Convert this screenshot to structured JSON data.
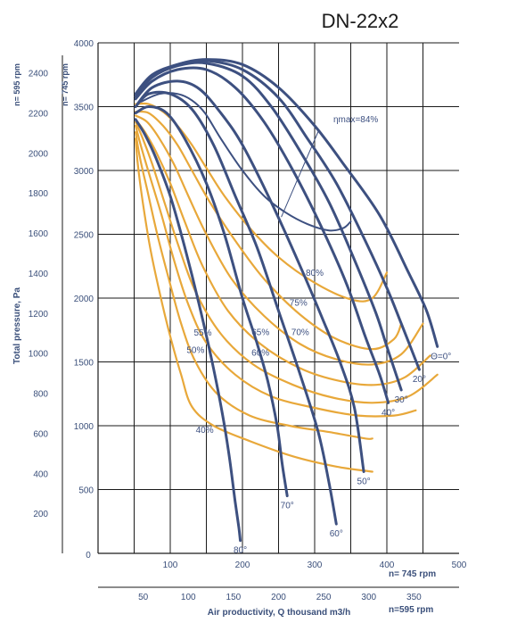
{
  "chart_data": {
    "type": "line",
    "title": "DN-22x2",
    "ylabel": "Total pressure, Pa",
    "xlabel": "Air productivity, Q thousand m3/h",
    "speeds": {
      "primary": "n= 745 rpm",
      "secondary": "n=595 rpm"
    },
    "x_axis_primary": {
      "label": "n= 745 rpm",
      "range": [
        0,
        500
      ],
      "ticks": [
        100,
        200,
        300,
        400,
        500
      ]
    },
    "x_axis_secondary": {
      "label": "n=595 rpm",
      "range": [
        0,
        400
      ],
      "ticks": [
        50,
        100,
        150,
        200,
        250,
        300,
        350
      ]
    },
    "y_axis_primary": {
      "label": "n= 745 rpm",
      "range": [
        0,
        4000
      ],
      "ticks": [
        500,
        1000,
        1500,
        2000,
        2500,
        3000,
        3500,
        4000
      ]
    },
    "y_axis_secondary": {
      "label": "n= 595 rpm",
      "range": [
        0,
        2550
      ],
      "ticks": [
        200,
        400,
        600,
        800,
        1000,
        1200,
        1400,
        1600,
        1800,
        2000,
        2200,
        2400
      ]
    },
    "zero_label": "0",
    "grid": true,
    "series": [
      {
        "name": "0°",
        "label": "Θ=0°",
        "kind": "blade_angle",
        "x": [
          52,
          75,
          110,
          150,
          200,
          250,
          300,
          340,
          390,
          430,
          455,
          470
        ],
        "y": [
          3600,
          3750,
          3830,
          3870,
          3830,
          3650,
          3350,
          3050,
          2650,
          2200,
          1900,
          1620
        ]
      },
      {
        "name": "20°",
        "label": "20°",
        "kind": "blade_angle",
        "x": [
          52,
          75,
          110,
          150,
          200,
          250,
          290,
          330,
          370,
          400,
          420,
          445
        ],
        "y": [
          3580,
          3740,
          3830,
          3860,
          3790,
          3570,
          3250,
          2900,
          2450,
          2080,
          1800,
          1440
        ]
      },
      {
        "name": "30°",
        "label": "30°",
        "kind": "blade_angle",
        "x": [
          52,
          75,
          110,
          150,
          200,
          240,
          280,
          320,
          355,
          385,
          400,
          420
        ],
        "y": [
          3580,
          3730,
          3820,
          3840,
          3740,
          3500,
          3150,
          2750,
          2300,
          1880,
          1620,
          1280
        ]
      },
      {
        "name": "40°",
        "label": "40°",
        "kind": "blade_angle",
        "x": [
          52,
          75,
          110,
          150,
          190,
          230,
          270,
          310,
          345,
          370,
          390,
          402
        ],
        "y": [
          3560,
          3700,
          3790,
          3790,
          3650,
          3380,
          3000,
          2550,
          2100,
          1700,
          1400,
          1180
        ]
      },
      {
        "name": "50°",
        "label": "50°",
        "kind": "blade_angle",
        "x": [
          52,
          75,
          110,
          140,
          170,
          200,
          240,
          280,
          310,
          335,
          355,
          368
        ],
        "y": [
          3500,
          3650,
          3700,
          3640,
          3450,
          3200,
          2750,
          2250,
          1850,
          1500,
          1140,
          640
        ]
      },
      {
        "name": "60°",
        "label": "60°",
        "kind": "blade_angle",
        "x": [
          52,
          70,
          100,
          130,
          160,
          190,
          220,
          250,
          280,
          305,
          320,
          330
        ],
        "y": [
          3500,
          3600,
          3600,
          3480,
          3200,
          2800,
          2400,
          1900,
          1400,
          950,
          550,
          230
        ]
      },
      {
        "name": "70°",
        "label": "70°",
        "kind": "blade_angle",
        "x": [
          52,
          70,
          95,
          120,
          150,
          175,
          200,
          220,
          235,
          248,
          255,
          262
        ],
        "y": [
          3450,
          3500,
          3450,
          3250,
          2900,
          2500,
          2000,
          1650,
          1350,
          1000,
          700,
          450
        ]
      },
      {
        "name": "80°",
        "label": "80°",
        "kind": "blade_angle",
        "x": [
          52,
          65,
          80,
          100,
          120,
          140,
          158,
          172,
          182,
          190,
          195,
          197
        ],
        "y": [
          3400,
          3280,
          3100,
          2800,
          2400,
          1950,
          1500,
          1100,
          750,
          400,
          200,
          100
        ]
      },
      {
        "name": "ηmax=84%",
        "label": "ηmax=84%",
        "kind": "efficiency",
        "x": [
          60,
          85,
          110,
          130,
          148,
          170,
          200,
          230,
          260,
          290,
          320,
          340,
          350
        ],
        "y": [
          3540,
          3600,
          3600,
          3550,
          3450,
          3250,
          3000,
          2800,
          2670,
          2580,
          2530,
          2550,
          2600
        ]
      },
      {
        "name": "80%",
        "label": "80%",
        "kind": "efficiency",
        "x": [
          52,
          70,
          90,
          110,
          130,
          150,
          175,
          210,
          250,
          300,
          350,
          380,
          400
        ],
        "y": [
          3520,
          3520,
          3460,
          3350,
          3200,
          3020,
          2800,
          2550,
          2320,
          2120,
          1990,
          2000,
          2200
        ]
      },
      {
        "name": "75%",
        "label": "75%",
        "kind": "efficiency",
        "x": [
          52,
          70,
          90,
          110,
          130,
          155,
          190,
          230,
          280,
          330,
          380,
          410,
          420
        ],
        "y": [
          3460,
          3450,
          3350,
          3200,
          3000,
          2750,
          2450,
          2150,
          1870,
          1680,
          1600,
          1680,
          1800
        ]
      },
      {
        "name": "70%",
        "label": "70%",
        "kind": "efficiency",
        "x": [
          52,
          68,
          85,
          105,
          125,
          150,
          185,
          230,
          280,
          330,
          380,
          420,
          450
        ],
        "y": [
          3430,
          3380,
          3250,
          3050,
          2800,
          2500,
          2150,
          1860,
          1640,
          1520,
          1480,
          1560,
          1800
        ]
      },
      {
        "name": "65%",
        "label": "65%",
        "kind": "efficiency",
        "x": [
          52,
          65,
          80,
          100,
          120,
          145,
          180,
          225,
          280,
          335,
          385,
          425,
          460
        ],
        "y": [
          3400,
          3300,
          3150,
          2900,
          2600,
          2250,
          1900,
          1640,
          1450,
          1350,
          1320,
          1380,
          1550
        ]
      },
      {
        "name": "60%",
        "label": "60%",
        "kind": "efficiency",
        "x": [
          52,
          62,
          75,
          92,
          112,
          135,
          170,
          215,
          270,
          325,
          380,
          430,
          470
        ],
        "y": [
          3380,
          3250,
          3050,
          2750,
          2400,
          2050,
          1720,
          1480,
          1320,
          1220,
          1180,
          1230,
          1400
        ]
      },
      {
        "name": "55%",
        "label": "55%",
        "kind": "efficiency",
        "x": [
          52,
          60,
          72,
          88,
          105,
          125,
          150,
          190,
          240,
          300,
          360,
          410,
          440
        ],
        "y": [
          3350,
          3180,
          2950,
          2650,
          2300,
          1950,
          1650,
          1400,
          1230,
          1140,
          1080,
          1080,
          1120
        ]
      },
      {
        "name": "50%",
        "label": "50%",
        "kind": "efficiency",
        "x": [
          52,
          58,
          68,
          82,
          98,
          115,
          135,
          165,
          210,
          265,
          320,
          370,
          380
        ],
        "y": [
          3300,
          3100,
          2850,
          2500,
          2150,
          1800,
          1500,
          1250,
          1080,
          1000,
          950,
          900,
          900
        ]
      },
      {
        "name": "40%",
        "label": "40%",
        "kind": "efficiency",
        "x": [
          52,
          55,
          62,
          72,
          85,
          100,
          115,
          130,
          160,
          210,
          270,
          330,
          380
        ],
        "y": [
          3250,
          3050,
          2750,
          2400,
          2050,
          1700,
          1400,
          1150,
          1000,
          880,
          760,
          680,
          640
        ]
      }
    ]
  }
}
